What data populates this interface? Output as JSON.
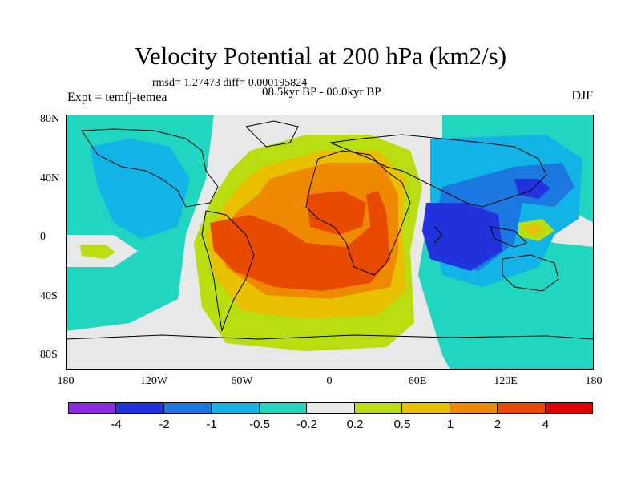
{
  "title": "Velocity Potential at 200 hPa (km2/s)",
  "stats": "rmsd= 1.27473 diff= 0.000195824",
  "period": "08.5kyr BP - 00.0kyr BP",
  "experiment": "Expt = temfj-temea",
  "season": "DJF",
  "lat_ticks": [
    "80N",
    "40N",
    "0",
    "40S",
    "80S"
  ],
  "lon_ticks": [
    "180",
    "120W",
    "60W",
    "0",
    "60E",
    "120E",
    "180"
  ],
  "colorbar": {
    "colors": [
      "#8a2be2",
      "#2233dd",
      "#1a78e0",
      "#12b4e8",
      "#20d6c0",
      "#e8e8e8",
      "#b8dd10",
      "#e8c000",
      "#ef8a00",
      "#e84a00",
      "#e00000"
    ],
    "labels": [
      "-4",
      "-2",
      "-1",
      "-0.5",
      "-0.2",
      "0.2",
      "0.5",
      "1",
      "2",
      "4"
    ]
  }
}
